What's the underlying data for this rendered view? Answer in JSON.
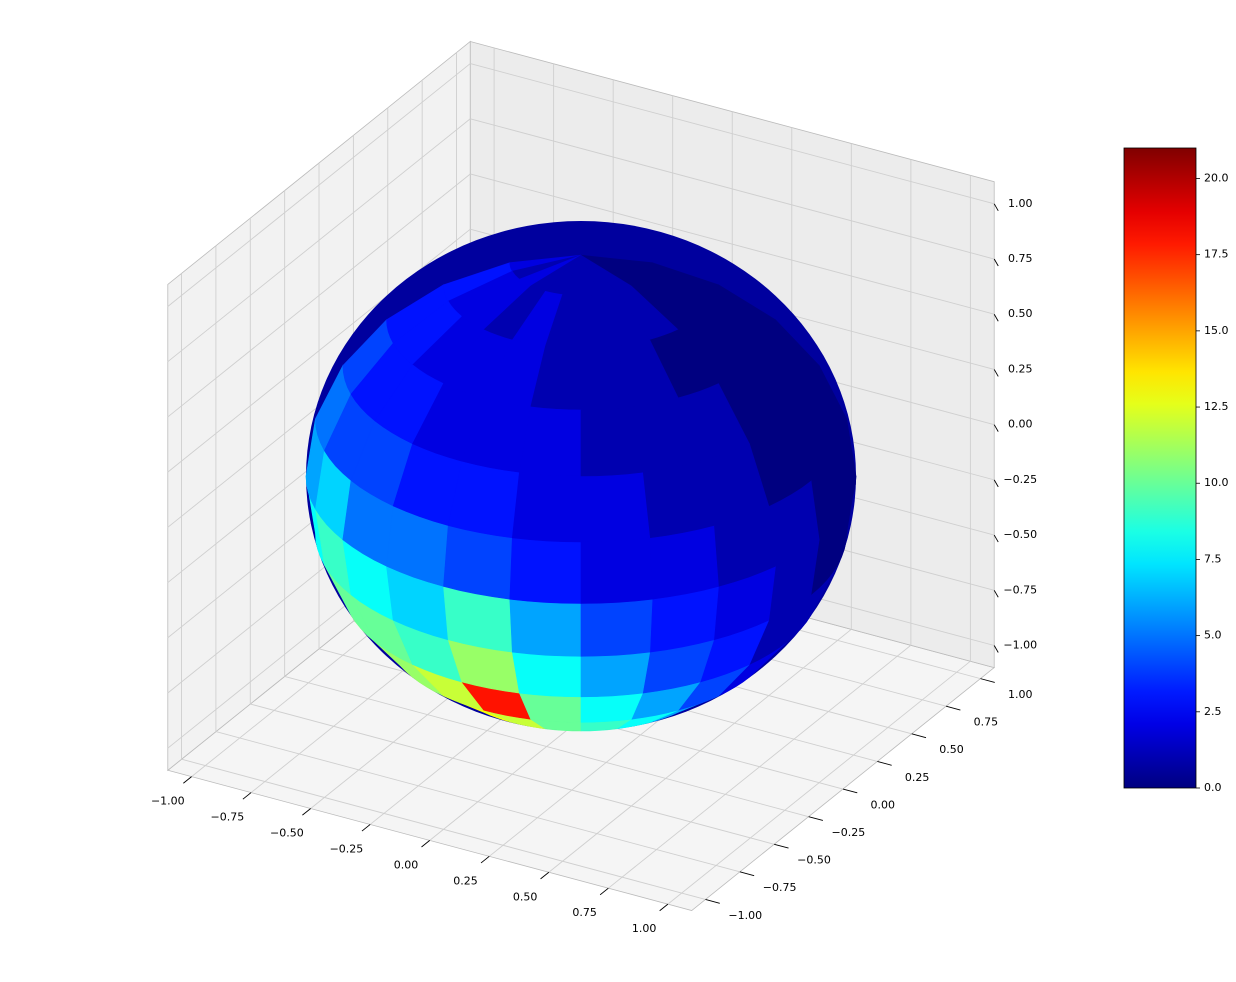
{
  "chart_data": {
    "type": "surface3d",
    "colormap": "jet",
    "view": {
      "elev": 30,
      "azim": -60
    },
    "grid": true,
    "xlim": [
      -1.1,
      1.1
    ],
    "ylim": [
      -1.1,
      1.1
    ],
    "zlim": [
      -1.1,
      1.1
    ],
    "xticks": [
      {
        "value": -1,
        "label": "−1.00"
      },
      {
        "value": -0.75,
        "label": "−0.75"
      },
      {
        "value": -0.5,
        "label": "−0.50"
      },
      {
        "value": -0.25,
        "label": "−0.25"
      },
      {
        "value": 0,
        "label": "0.00"
      },
      {
        "value": 0.25,
        "label": "0.25"
      },
      {
        "value": 0.5,
        "label": "0.50"
      },
      {
        "value": 0.75,
        "label": "0.75"
      },
      {
        "value": 1,
        "label": "1.00"
      }
    ],
    "yticks": [
      {
        "value": -1,
        "label": "−1.00"
      },
      {
        "value": -0.75,
        "label": "−0.75"
      },
      {
        "value": -0.5,
        "label": "−0.50"
      },
      {
        "value": -0.25,
        "label": "−0.25"
      },
      {
        "value": 0,
        "label": "0.00"
      },
      {
        "value": 0.25,
        "label": "0.25"
      },
      {
        "value": 0.5,
        "label": "0.50"
      },
      {
        "value": 0.75,
        "label": "0.75"
      },
      {
        "value": 1,
        "label": "1.00"
      }
    ],
    "zticks": [
      {
        "value": -1,
        "label": "−1.00"
      },
      {
        "value": -0.75,
        "label": "−0.75"
      },
      {
        "value": -0.5,
        "label": "−0.50"
      },
      {
        "value": -0.25,
        "label": "−0.25"
      },
      {
        "value": 0,
        "label": "0.00"
      },
      {
        "value": 0.25,
        "label": "0.25"
      },
      {
        "value": 0.5,
        "label": "0.50"
      },
      {
        "value": 0.75,
        "label": "0.75"
      },
      {
        "value": 1,
        "label": "1.00"
      }
    ],
    "surface": {
      "lat_range": [
        90,
        -90
      ],
      "lon_range": [
        -150,
        30
      ],
      "values": [
        [
          2,
          1,
          2,
          1,
          1,
          1,
          1,
          1,
          1,
          0,
          0,
          0
        ],
        [
          3,
          2,
          2,
          1,
          2,
          1,
          1,
          1,
          1,
          0,
          0,
          0
        ],
        [
          3,
          3,
          2,
          2,
          2,
          1,
          1,
          1,
          0,
          0,
          0,
          0
        ],
        [
          4,
          3,
          3,
          2,
          2,
          2,
          1,
          1,
          1,
          0,
          0,
          0
        ],
        [
          5,
          4,
          4,
          3,
          3,
          2,
          2,
          1,
          1,
          0,
          0,
          0
        ],
        [
          6,
          7,
          5,
          5,
          4,
          3,
          2,
          2,
          1,
          1,
          0,
          0
        ],
        [
          8,
          9,
          8,
          7,
          9,
          6,
          4,
          3,
          2,
          1,
          0,
          0
        ],
        [
          9,
          10,
          10,
          9,
          11,
          8,
          6,
          4,
          3,
          1,
          1,
          0
        ],
        [
          10,
          12,
          11,
          12,
          18,
          10,
          8,
          6,
          4,
          2,
          1,
          0
        ],
        [
          11,
          13,
          14,
          13,
          12,
          10,
          9,
          8,
          6,
          3,
          1,
          0
        ],
        [
          12,
          15,
          18,
          14,
          13,
          11,
          9,
          8,
          6,
          3,
          1,
          0
        ],
        [
          11,
          13,
          14,
          12,
          11,
          10,
          8,
          7,
          5,
          3,
          1,
          0
        ]
      ]
    },
    "colorbar": {
      "clim": [
        0,
        21
      ],
      "ticks": [
        {
          "value": 0,
          "label": "0.0"
        },
        {
          "value": 2.5,
          "label": "2.5"
        },
        {
          "value": 5,
          "label": "5.0"
        },
        {
          "value": 7.5,
          "label": "7.5"
        },
        {
          "value": 10,
          "label": "10.0"
        },
        {
          "value": 12.5,
          "label": "12.5"
        },
        {
          "value": 15,
          "label": "15.0"
        },
        {
          "value": 17.5,
          "label": "17.5"
        },
        {
          "value": 20,
          "label": "20.0"
        }
      ]
    }
  }
}
